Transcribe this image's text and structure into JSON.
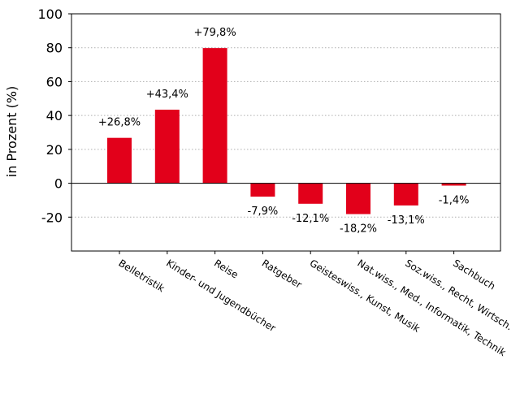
{
  "chart_data": {
    "type": "bar",
    "title": "",
    "xlabel": "",
    "ylabel": "in Prozent (%)",
    "ylim": [
      -40,
      100
    ],
    "yticks": [
      -20,
      0,
      20,
      40,
      60,
      80,
      100
    ],
    "ytick_labels": [
      "-20",
      "0",
      "20",
      "40",
      "60",
      "80",
      "100"
    ],
    "grid": "horizontal dotted",
    "bar_color": "#e2001a",
    "categories": [
      "Belletristik",
      "Kinder- und Jugendbücher",
      "Reise",
      "Ratgeber",
      "Geisteswiss., Kunst, Musik",
      "Nat.wiss., Med., Informatik, Technik",
      "Soz.wiss., Recht, Wirtsch.",
      "Sachbuch"
    ],
    "values": [
      26.8,
      43.4,
      79.8,
      -7.9,
      -12.1,
      -18.2,
      -13.1,
      -1.4
    ],
    "data_labels": [
      "+26,8%",
      "+43,4%",
      "+79,8%",
      "-7,9%",
      "-12,1%",
      "-18,2%",
      "-13,1%",
      "-1,4%"
    ]
  }
}
